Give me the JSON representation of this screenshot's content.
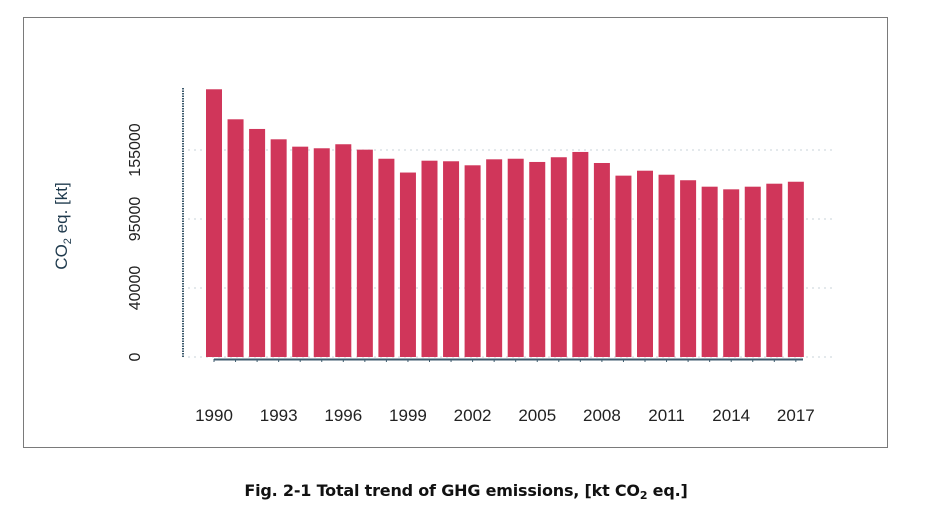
{
  "chart_data": {
    "type": "bar",
    "title": "",
    "xlabel": "",
    "ylabel": "CO2 eq. [kt]",
    "ylabel_parts": {
      "main": "CO",
      "sub": "2",
      "rest": " eq. [kt]"
    },
    "ylim": [
      0,
      210000
    ],
    "y_ticks": [
      {
        "value": 0,
        "label": "0"
      },
      {
        "value": 40000,
        "label": "40000"
      },
      {
        "value": 95000,
        "label": "95000"
      },
      {
        "value": 155000,
        "label": "155000"
      }
    ],
    "x_tick_labels": [
      "1990",
      "1993",
      "1996",
      "1999",
      "2002",
      "2005",
      "2008",
      "2011",
      "2014",
      "2017"
    ],
    "grid": "horizontal-dotted",
    "legend": "none",
    "bar_color": "#D0365A",
    "categories": [
      "1990",
      "1991",
      "1992",
      "1993",
      "1994",
      "1995",
      "1996",
      "1997",
      "1998",
      "1999",
      "2000",
      "2001",
      "2002",
      "2003",
      "2004",
      "2005",
      "2006",
      "2007",
      "2008",
      "2009",
      "2010",
      "2011",
      "2012",
      "2013",
      "2014",
      "2015",
      "2016",
      "2017"
    ],
    "values": [
      207800,
      181700,
      173300,
      164300,
      157900,
      156500,
      160000,
      155300,
      147400,
      135400,
      145700,
      145200,
      141700,
      146900,
      147400,
      144600,
      148700,
      153300,
      143700,
      132700,
      137000,
      133500,
      128700,
      123100,
      120800,
      123100,
      125700,
      127400
    ]
  },
  "caption": {
    "prefix": "Fig. 2-1 Total trend of GHG emissions, [kt CO",
    "sub": "2",
    "suffix": " eq.]"
  }
}
